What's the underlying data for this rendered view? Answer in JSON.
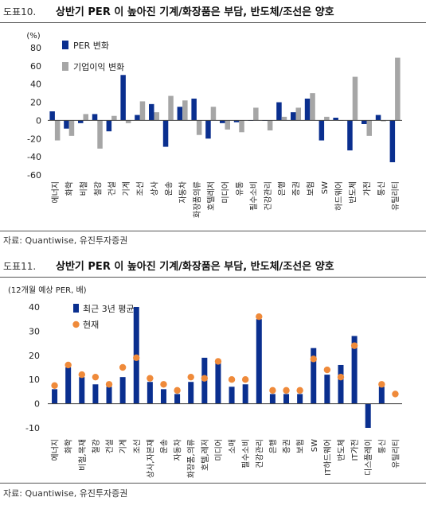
{
  "figures": [
    {
      "number": "도표10.",
      "title": "상반기 PER 이 높아진 기계/화장품은 부담, 반도체/조선은 양호",
      "source": "자료: Quantiwise, 유진투자증권"
    },
    {
      "number": "도표11.",
      "title": "상반기 PER 이 높아진 기계/화장품은 부담, 반도체/조선은 양호",
      "source": "자료: Quantiwise, 유진투자증권"
    }
  ],
  "chart_data": [
    {
      "type": "bar",
      "unit_label": "(%)",
      "ylim": [
        -60,
        80
      ],
      "yticks": [
        -60,
        -40,
        -20,
        0,
        20,
        40,
        60,
        80
      ],
      "categories": [
        "에너지",
        "화학",
        "비철",
        "철강",
        "건설",
        "기계",
        "조선",
        "상사",
        "운송",
        "자동차",
        "화장품의류",
        "호텔레저",
        "미디어",
        "유통",
        "필수소비",
        "건강관리",
        "은행",
        "증권",
        "보험",
        "SW",
        "하드웨어",
        "반도체",
        "가전",
        "통신",
        "유틸리티"
      ],
      "series": [
        {
          "name": "PER 변화",
          "color": "#0a2f8f",
          "values": [
            10,
            -9,
            -3,
            7,
            -12,
            50,
            6,
            18,
            -29,
            15,
            24,
            -20,
            -3,
            -2,
            0,
            0,
            20,
            9,
            24,
            -22,
            3,
            -33,
            -4,
            6,
            -46
          ]
        },
        {
          "name": "기업이익 변화",
          "color": "#a6a6a6",
          "values": [
            -22,
            -17,
            7,
            -31,
            5,
            -3,
            21,
            9,
            27,
            22,
            -16,
            15,
            -10,
            -13,
            14,
            -11,
            4,
            14,
            30,
            4,
            0,
            48,
            -17,
            -1,
            69
          ]
        }
      ],
      "legend": "top-left"
    },
    {
      "type": "bar",
      "unit_label": "(12개월 예상 PER, 배)",
      "ylim": [
        -10,
        40
      ],
      "yticks": [
        -10,
        0,
        10,
        20,
        30,
        40
      ],
      "categories": [
        "에너지",
        "화학",
        "비철,목재",
        "철강",
        "건설",
        "기계",
        "조선",
        "상사,자본재",
        "운송",
        "자동차",
        "화장품,의류",
        "호텔,레저",
        "미디어",
        "소매",
        "필수소비",
        "건강관리",
        "은행",
        "증권",
        "보험",
        "SW",
        "IT하드웨어",
        "반도체",
        "IT가전",
        "디스플레이",
        "통신",
        "유틸리티"
      ],
      "series": [
        {
          "name": "최근 3년 평균",
          "kind": "bar",
          "color": "#0a2f8f",
          "values": [
            6,
            15,
            11,
            8,
            7,
            11,
            40,
            9,
            6,
            4,
            9,
            19,
            17,
            7,
            8,
            35,
            4,
            4,
            4,
            23,
            12,
            16,
            28,
            -10,
            7,
            null
          ]
        },
        {
          "name": "현재",
          "kind": "dot",
          "color": "#ef8a3a",
          "values": [
            7.5,
            16,
            12,
            11,
            8,
            15,
            19,
            10.5,
            8,
            5.5,
            11,
            10.5,
            17.5,
            10,
            10,
            36,
            5.5,
            5.5,
            5.5,
            18.5,
            14,
            11,
            24,
            null,
            8,
            4
          ]
        }
      ],
      "legend": "top-left"
    }
  ]
}
